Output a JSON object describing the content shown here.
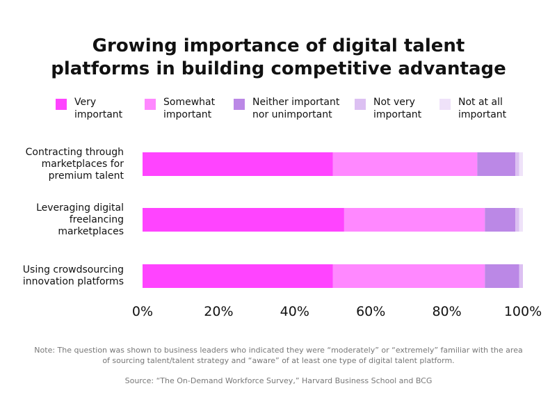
{
  "chart_data": {
    "type": "bar",
    "orientation": "horizontal",
    "stacked": true,
    "title": "Growing importance of digital talent\nplatforms in building competitive advantage",
    "categories": [
      "Contracting through\nmarketplaces for\npremium talent",
      "Leveraging digital\nfreelancing\nmarketplaces",
      "Using crowdsourcing\ninnovation platforms"
    ],
    "series": [
      {
        "name": "Very\nimportant",
        "color": "#ff44ff",
        "values": [
          50,
          53,
          50
        ]
      },
      {
        "name": "Somewhat\nimportant",
        "color": "#ff88ff",
        "values": [
          38,
          37,
          40
        ]
      },
      {
        "name": "Neither important\nnor unimportant",
        "color": "#bb88e6",
        "values": [
          10,
          8,
          9
        ]
      },
      {
        "name": "Not very\nimportant",
        "color": "#dcc0f2",
        "values": [
          1,
          1,
          1
        ]
      },
      {
        "name": "Not at all\nimportant",
        "color": "#efe2f9",
        "values": [
          1,
          1,
          0
        ]
      }
    ],
    "xlim": [
      0,
      100
    ],
    "xticks": [
      {
        "value": 0,
        "label": "0%"
      },
      {
        "value": 20,
        "label": "20%"
      },
      {
        "value": 40,
        "label": "40%"
      },
      {
        "value": 60,
        "label": "60%"
      },
      {
        "value": 80,
        "label": "80%"
      },
      {
        "value": 100,
        "label": "100%"
      }
    ],
    "note": "Note: The question was shown to business leaders who indicated they were “moderately” or “extremely” familiar with the area\nof sourcing talent/talent strategy and “aware” of at least one type of digital talent platform.",
    "source": "Source: “The On-Demand Workforce Survey,” Harvard Business School and BCG"
  }
}
